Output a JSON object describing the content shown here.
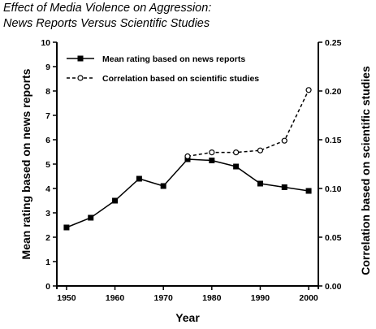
{
  "chart_data": {
    "type": "line",
    "title_line1": "Effect of Media Violence on Aggression:",
    "title_line2": "News Reports Versus Scientific Studies",
    "xlabel": "Year",
    "ylabel_left": "Mean rating based on news reports",
    "ylabel_right": "Correlation based on scientific studies",
    "x_ticks": [
      1950,
      1960,
      1970,
      1980,
      1990,
      2000
    ],
    "x_range": [
      1948,
      2002
    ],
    "y_left_range": [
      0,
      10
    ],
    "y_left_ticks": [
      0,
      1,
      2,
      3,
      4,
      5,
      6,
      7,
      8,
      9,
      10
    ],
    "y_right_range": [
      0.0,
      0.25
    ],
    "y_right_ticks": [
      "0.00",
      "0.05",
      "0.10",
      "0.15",
      "0.20",
      "0.25"
    ],
    "legend_position": "top-left",
    "grid": false,
    "series": [
      {
        "name": "Mean rating based on news reports",
        "axis": "left",
        "marker": "filled-square",
        "line_style": "solid",
        "x": [
          1950,
          1955,
          1960,
          1965,
          1970,
          1975,
          1980,
          1985,
          1990,
          1995,
          2000
        ],
        "y": [
          2.4,
          2.8,
          3.5,
          4.4,
          4.1,
          5.2,
          5.15,
          4.9,
          4.2,
          4.05,
          3.9
        ]
      },
      {
        "name": "Correlation based on scientific studies",
        "axis": "right",
        "marker": "open-circle",
        "line_style": "dashed",
        "x": [
          1975,
          1980,
          1985,
          1990,
          1995,
          2000
        ],
        "y": [
          0.133,
          0.137,
          0.137,
          0.139,
          0.149,
          0.201
        ]
      }
    ]
  }
}
